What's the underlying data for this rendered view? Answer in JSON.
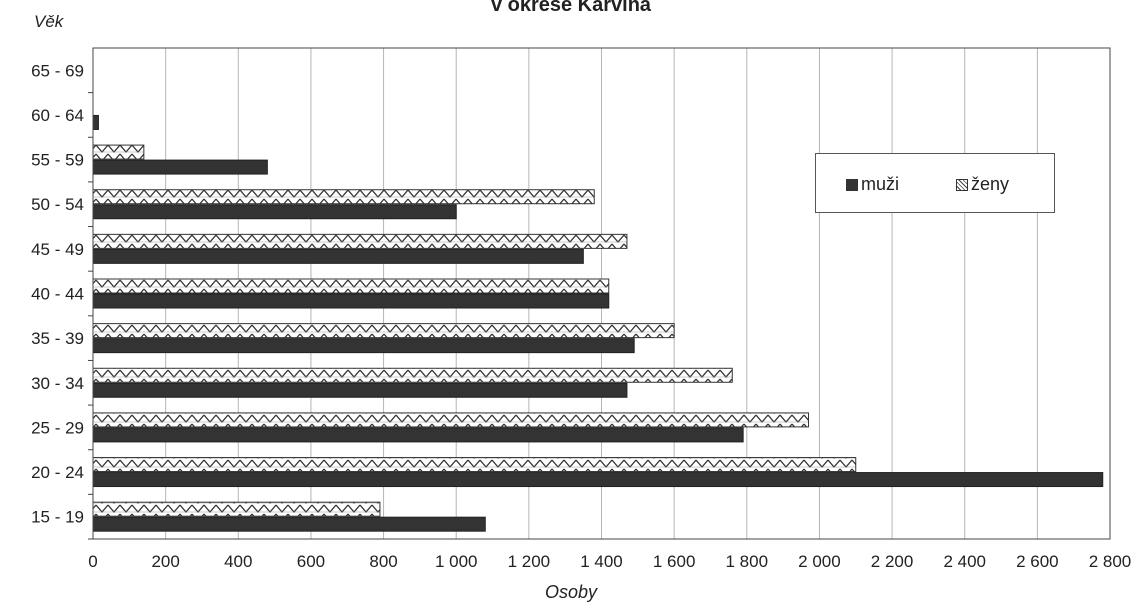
{
  "chart_data": {
    "type": "bar",
    "orientation": "horizontal",
    "title": "v okrese Karviná",
    "xlabel": "Osoby",
    "ylabel": "Věk",
    "xlim": [
      0,
      2800
    ],
    "xticks": [
      0,
      200,
      400,
      600,
      800,
      1000,
      1200,
      1400,
      1600,
      1800,
      2000,
      2200,
      2400,
      2600,
      2800
    ],
    "xtick_labels": [
      "0",
      "200",
      "400",
      "600",
      "800",
      "1 000",
      "1 200",
      "1 400",
      "1 600",
      "1 800",
      "2 000",
      "2 200",
      "2 400",
      "2 600",
      "2 800"
    ],
    "categories": [
      "15 - 19",
      "20 - 24",
      "25 - 29",
      "30 - 34",
      "35 - 39",
      "40 - 44",
      "45 - 49",
      "50 - 54",
      "55 - 59",
      "60 - 64",
      "65 - 69"
    ],
    "series": [
      {
        "name": "muži",
        "color": "#333333",
        "pattern": "solid",
        "values": [
          1080,
          2780,
          1790,
          1470,
          1490,
          1420,
          1350,
          1000,
          480,
          15,
          0
        ]
      },
      {
        "name": "ženy",
        "color": "#ffffff",
        "pattern": "zigzag",
        "values": [
          790,
          2100,
          1970,
          1760,
          1600,
          1420,
          1470,
          1380,
          140,
          0,
          0
        ]
      }
    ],
    "grid": "vertical",
    "legend_position": "top-right"
  }
}
